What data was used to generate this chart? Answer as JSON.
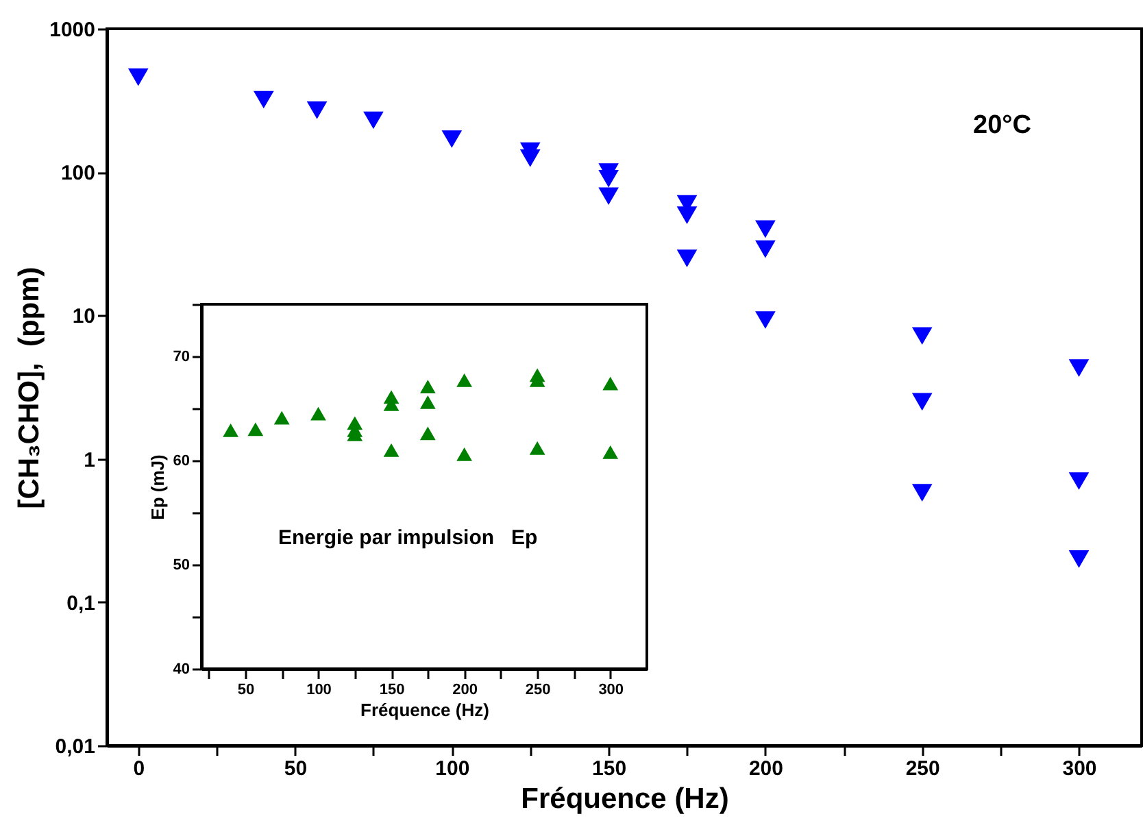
{
  "chart_data": [
    {
      "type": "scatter",
      "xlabel": "Fréquence (Hz)",
      "ylabel": "[CH₃CHO],  (ppm)",
      "log": "y",
      "marker": "triangle-down",
      "grid": false,
      "legend": false,
      "annotations": [
        "20°C"
      ],
      "xlim": [
        -10,
        320
      ],
      "xticks": [
        0,
        {
          "value": 25,
          "label": null
        },
        50,
        {
          "value": 75,
          "label": null
        },
        100,
        {
          "value": 125,
          "label": null
        },
        150,
        {
          "value": 175,
          "label": null
        },
        200,
        {
          "value": 225,
          "label": null
        },
        250,
        {
          "value": 275,
          "label": null
        },
        300
      ],
      "ylim": [
        0.01,
        1000
      ],
      "yticks": [
        {
          "value": 0.01,
          "label": "0,01"
        },
        {
          "value": 0.1,
          "label": "0,1"
        },
        1,
        10,
        100,
        1000
      ],
      "series": [
        {
          "color": "#0000ff",
          "x": [
            0,
            40,
            57,
            75,
            100,
            125,
            125,
            150,
            150,
            150,
            175,
            175,
            175,
            200,
            200,
            200,
            250,
            250,
            250,
            300,
            300,
            300
          ],
          "values": [
            460,
            320,
            270,
            230,
            170,
            140,
            125,
            100,
            90,
            68,
            60,
            50,
            25,
            40,
            29,
            9.3,
            7.2,
            2.5,
            0.58,
            4.3,
            0.7,
            0.2
          ]
        }
      ]
    },
    {
      "type": "scatter",
      "xlabel": "Fréquence (Hz)",
      "ylabel": "Ep (mJ)",
      "marker": "triangle",
      "grid": false,
      "legend": false,
      "annotations": [
        "Energie par impulsion   Ep"
      ],
      "xlim": [
        20,
        325
      ],
      "xticks": [
        {
          "value": 25,
          "label": null
        },
        50,
        {
          "value": 75,
          "label": null
        },
        100,
        {
          "value": 125,
          "label": null
        },
        150,
        {
          "value": 175,
          "label": null
        },
        200,
        {
          "value": 225,
          "label": null
        },
        250,
        {
          "value": 275,
          "label": null
        },
        300
      ],
      "ylim": [
        40,
        75
      ],
      "yticks": [
        40,
        {
          "value": 45,
          "label": null
        },
        50,
        {
          "value": 55,
          "label": null
        },
        60,
        {
          "value": 65,
          "label": null
        },
        70,
        {
          "value": 75,
          "label": null
        }
      ],
      "series": [
        {
          "color": "#008000",
          "x": [
            40,
            57,
            75,
            100,
            125,
            125,
            125,
            150,
            150,
            150,
            175,
            175,
            175,
            200,
            200,
            250,
            250,
            250,
            300,
            300
          ],
          "values": [
            62.9,
            63.0,
            64.1,
            64.5,
            63.6,
            62.9,
            62.5,
            66.1,
            65.4,
            61.0,
            67.1,
            65.6,
            62.6,
            67.7,
            60.6,
            68.2,
            67.7,
            61.2,
            67.4,
            60.8
          ]
        }
      ]
    }
  ]
}
